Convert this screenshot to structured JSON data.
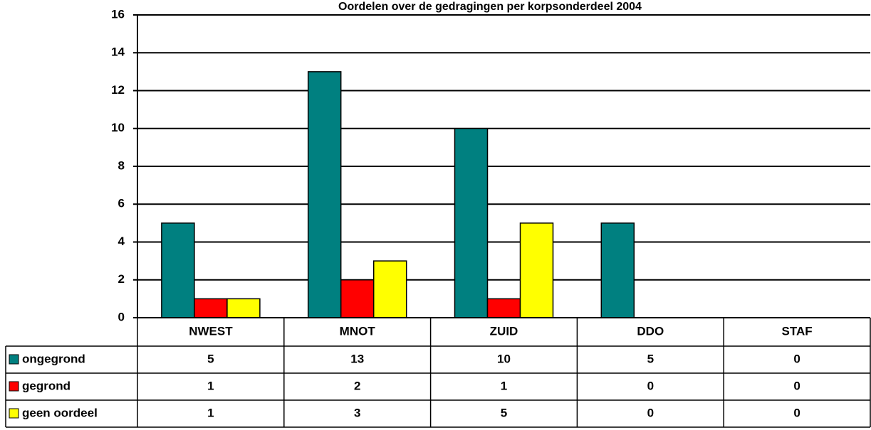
{
  "chart_data": {
    "type": "bar",
    "title": "Oordelen over de gedragingen per korpsonderdeel 2004",
    "categories": [
      "NWEST",
      "MNOT",
      "ZUID",
      "DDO",
      "STAF"
    ],
    "series": [
      {
        "name": "ongegrond",
        "color": "#008080",
        "values": [
          5,
          13,
          10,
          5,
          0
        ]
      },
      {
        "name": "gegrond",
        "color": "#ff0000",
        "values": [
          1,
          2,
          1,
          0,
          0
        ]
      },
      {
        "name": "geen oordeel",
        "color": "#ffff00",
        "values": [
          1,
          3,
          5,
          0,
          0
        ]
      }
    ],
    "ylim": [
      0,
      16
    ],
    "yticks": [
      0,
      2,
      4,
      6,
      8,
      10,
      12,
      14,
      16
    ],
    "grid": true
  }
}
